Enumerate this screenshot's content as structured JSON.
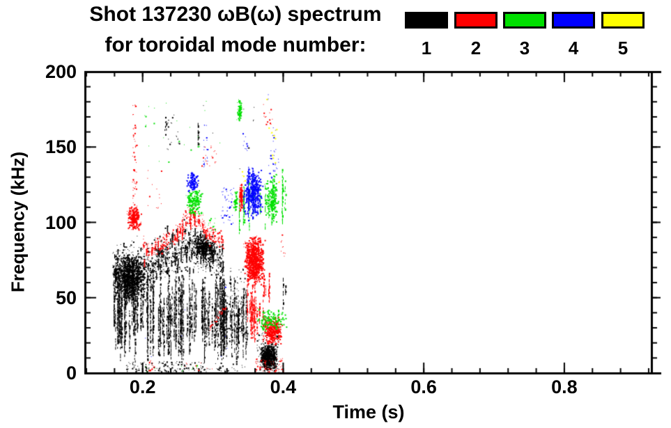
{
  "title": {
    "line1": "Shot 137230 ωB(ω) spectrum",
    "line2": "for toroidal mode number:"
  },
  "legend": {
    "items": [
      {
        "label": "1",
        "color": "#000000"
      },
      {
        "label": "2",
        "color": "#ff0000"
      },
      {
        "label": "3",
        "color": "#00e000"
      },
      {
        "label": "4",
        "color": "#0000ff"
      },
      {
        "label": "5",
        "color": "#ffff00"
      }
    ]
  },
  "chart_data": {
    "type": "scatter",
    "title": "Shot 137230 ωB(ω) spectrum for toroidal mode number",
    "xlabel": "Time (s)",
    "ylabel": "Frequency (kHz)",
    "xlim": [
      0.118,
      0.924
    ],
    "ylim": [
      0,
      200
    ],
    "xticks": [
      0.2,
      0.4,
      0.6,
      0.8
    ],
    "xtick_labels": [
      "0.2",
      "0.4",
      "0.6",
      "0.8"
    ],
    "yticks": [
      0,
      50,
      100,
      150,
      200
    ],
    "ytick_labels": [
      "0",
      "50",
      "100",
      "150",
      "200"
    ],
    "x_minor_step": 0.04,
    "y_minor_step": 10,
    "grid": false,
    "legend_position": "top-right",
    "series": [
      {
        "mode": 1,
        "name": "n=1",
        "color": "#000000",
        "clusters": [
          {
            "shape": "band",
            "pts": [
              [
                0.157,
                67
              ],
              [
                0.17,
                70
              ],
              [
                0.185,
                68
              ],
              [
                0.2,
                72
              ],
              [
                0.215,
                74
              ],
              [
                0.23,
                77
              ],
              [
                0.245,
                80
              ],
              [
                0.258,
                83
              ],
              [
                0.267,
                87
              ],
              [
                0.277,
                84
              ],
              [
                0.289,
                80
              ],
              [
                0.304,
                78
              ],
              [
                0.314,
                76
              ]
            ],
            "spread": 12,
            "n": 1900
          },
          {
            "shape": "blob",
            "t": [
              0.158,
              0.205
            ],
            "f": [
              46,
              80
            ],
            "n": 850
          },
          {
            "shape": "blob",
            "t": [
              0.271,
              0.301
            ],
            "f": [
              76,
              92
            ],
            "n": 300
          },
          {
            "shape": "vstreaks",
            "t": [
              0.157,
              0.318
            ],
            "f": [
              8,
              72
            ],
            "n": 100
          },
          {
            "shape": "dots",
            "t": [
              0.175,
              0.285
            ],
            "f": [
              1,
              8
            ],
            "n": 120
          },
          {
            "shape": "dots",
            "t": [
              0.285,
              0.345
            ],
            "f": [
              1,
              7
            ],
            "n": 30
          },
          {
            "shape": "blob",
            "t": [
              0.366,
              0.391
            ],
            "f": [
              2,
              20
            ],
            "n": 600
          },
          {
            "shape": "dots",
            "t": [
              0.362,
              0.394
            ],
            "f": [
              0,
              27
            ],
            "n": 130
          },
          {
            "shape": "dots",
            "t": [
              0.232,
              0.256
            ],
            "f": [
              148,
              172
            ],
            "n": 14
          },
          {
            "shape": "vstreaks",
            "t": [
              0.231,
              0.234
            ],
            "f": [
              158,
              172
            ],
            "n": 2
          },
          {
            "shape": "vstreaks",
            "t": [
              0.276,
              0.279
            ],
            "f": [
              147,
              168
            ],
            "n": 2
          },
          {
            "shape": "vstreaks",
            "t": [
              0.314,
              0.349
            ],
            "f": [
              6,
              66
            ],
            "n": 28
          },
          {
            "shape": "dots",
            "t": [
              0.314,
              0.349
            ],
            "f": [
              20,
              70
            ],
            "n": 100
          },
          {
            "shape": "dots",
            "t": [
              0.27,
              0.39
            ],
            "f": [
              125,
              180
            ],
            "n": 8
          },
          {
            "shape": "vstreaks",
            "t": [
              0.399,
              0.403
            ],
            "f": [
              38,
              70
            ],
            "n": 2
          }
        ]
      },
      {
        "mode": 2,
        "name": "n=2",
        "color": "#ff0000",
        "clusters": [
          {
            "shape": "dots",
            "t": [
              0.185,
              0.191
            ],
            "f": [
              108,
              178
            ],
            "n": 50
          },
          {
            "shape": "blob",
            "t": [
              0.178,
              0.198
            ],
            "f": [
              95,
              111
            ],
            "n": 230
          },
          {
            "shape": "band",
            "pts": [
              [
                0.2,
                84
              ],
              [
                0.21,
                82
              ],
              [
                0.223,
                84
              ],
              [
                0.235,
                88
              ],
              [
                0.248,
                92
              ],
              [
                0.258,
                100
              ],
              [
                0.266,
                106
              ],
              [
                0.274,
                104
              ],
              [
                0.284,
                98
              ],
              [
                0.294,
                93
              ],
              [
                0.306,
                89
              ],
              [
                0.316,
                86
              ]
            ],
            "spread": 5.5,
            "n": 620
          },
          {
            "shape": "blob",
            "t": [
              0.344,
              0.374
            ],
            "f": [
              58,
              92
            ],
            "n": 700
          },
          {
            "shape": "vstreaks",
            "t": [
              0.346,
              0.374
            ],
            "f": [
              20,
              60
            ],
            "n": 16
          },
          {
            "shape": "chirp",
            "t": [
              0.294,
              0.317
            ],
            "f": [
              30,
              44
            ],
            "n": 26
          },
          {
            "shape": "blob",
            "t": [
              0.371,
              0.398
            ],
            "f": [
              18,
              38
            ],
            "n": 320
          },
          {
            "shape": "dots",
            "t": [
              0.36,
              0.4
            ],
            "f": [
              1,
              10
            ],
            "n": 60
          },
          {
            "shape": "dots",
            "t": [
              0.207,
              0.218
            ],
            "f": [
              2,
              8
            ],
            "n": 12
          },
          {
            "shape": "dots",
            "t": [
              0.25,
              0.3
            ],
            "f": [
              2,
              7
            ],
            "n": 8
          },
          {
            "shape": "dots",
            "t": [
              0.283,
              0.306
            ],
            "f": [
              136,
              152
            ],
            "n": 16
          },
          {
            "shape": "blob",
            "t": [
              0.337,
              0.342
            ],
            "f": [
              106,
              128
            ],
            "n": 90
          },
          {
            "shape": "dots",
            "t": [
              0.37,
              0.385
            ],
            "f": [
              162,
              180
            ],
            "n": 12
          },
          {
            "shape": "vstreaks",
            "t": [
              0.368,
              0.383
            ],
            "f": [
              46,
              68
            ],
            "n": 6
          },
          {
            "shape": "dots",
            "t": [
              0.206,
              0.227
            ],
            "f": [
              108,
              135
            ],
            "n": 12
          },
          {
            "shape": "dots",
            "t": [
              0.396,
              0.403
            ],
            "f": [
              76,
              93
            ],
            "n": 10
          }
        ]
      },
      {
        "mode": 3,
        "name": "n=3",
        "color": "#00e000",
        "clusters": [
          {
            "shape": "dots",
            "t": [
              0.2,
              0.31
            ],
            "f": [
              140,
              182
            ],
            "n": 22
          },
          {
            "shape": "blob",
            "t": [
              0.334,
              0.34
            ],
            "f": [
              167,
              182
            ],
            "n": 70
          },
          {
            "shape": "blob",
            "t": [
              0.261,
              0.285
            ],
            "f": [
              104,
              124
            ],
            "n": 150
          },
          {
            "shape": "dots",
            "t": [
              0.291,
              0.304
            ],
            "f": [
              94,
              103
            ],
            "n": 12
          },
          {
            "shape": "vstreaks",
            "t": [
              0.329,
              0.406
            ],
            "f": [
              92,
              136
            ],
            "n": 16
          },
          {
            "shape": "blob",
            "t": [
              0.374,
              0.393
            ],
            "f": [
              98,
              133
            ],
            "n": 170
          },
          {
            "shape": "blob",
            "t": [
              0.329,
              0.334
            ],
            "f": [
              108,
              122
            ],
            "n": 30
          },
          {
            "shape": "blob",
            "t": [
              0.363,
              0.406
            ],
            "f": [
              28,
              43
            ],
            "n": 140
          },
          {
            "shape": "dots",
            "t": [
              0.19,
              0.28
            ],
            "f": [
              1,
              7
            ],
            "n": 10
          }
        ]
      },
      {
        "mode": 4,
        "name": "n=4",
        "color": "#0000ff",
        "clusters": [
          {
            "shape": "blob",
            "t": [
              0.262,
              0.279
            ],
            "f": [
              121,
              134
            ],
            "n": 90
          },
          {
            "shape": "dots",
            "t": [
              0.286,
              0.292
            ],
            "f": [
              136,
              168
            ],
            "n": 18
          },
          {
            "shape": "dots",
            "t": [
              0.311,
              0.329
            ],
            "f": [
              99,
              123
            ],
            "n": 40
          },
          {
            "shape": "blob",
            "t": [
              0.343,
              0.371
            ],
            "f": [
              103,
              137
            ],
            "n": 280
          },
          {
            "shape": "vstreaks",
            "t": [
              0.343,
              0.371
            ],
            "f": [
              100,
              137
            ],
            "n": 10
          },
          {
            "shape": "dots",
            "t": [
              0.375,
              0.397
            ],
            "f": [
              128,
              150
            ],
            "n": 22
          },
          {
            "shape": "dots",
            "t": [
              0.384,
              0.39
            ],
            "f": [
              154,
              165
            ],
            "n": 6
          },
          {
            "shape": "dots",
            "t": [
              0.341,
              0.349
            ],
            "f": [
              147,
              163
            ],
            "n": 10
          },
          {
            "shape": "dots",
            "t": [
              0.17,
              0.32
            ],
            "f": [
              8,
              60
            ],
            "n": 8
          },
          {
            "shape": "dots",
            "t": [
              0.378,
              0.384
            ],
            "f": [
              182,
              188
            ],
            "n": 2
          }
        ]
      },
      {
        "mode": 5,
        "name": "n=5",
        "color": "#ffff00",
        "clusters": [
          {
            "shape": "points",
            "pts": [
              [
                0.376,
                182
              ],
              [
                0.379,
                163
              ],
              [
                0.383,
                160
              ],
              [
                0.386,
                158
              ],
              [
                0.388,
                156
              ],
              [
                0.39,
                162
              ],
              [
                0.385,
                143
              ],
              [
                0.388,
                140
              ],
              [
                0.341,
                134
              ],
              [
                0.343,
                131
              ],
              [
                0.345,
                128
              ],
              [
                0.393,
                127
              ],
              [
                0.384,
                145
              ]
            ]
          }
        ]
      }
    ]
  }
}
